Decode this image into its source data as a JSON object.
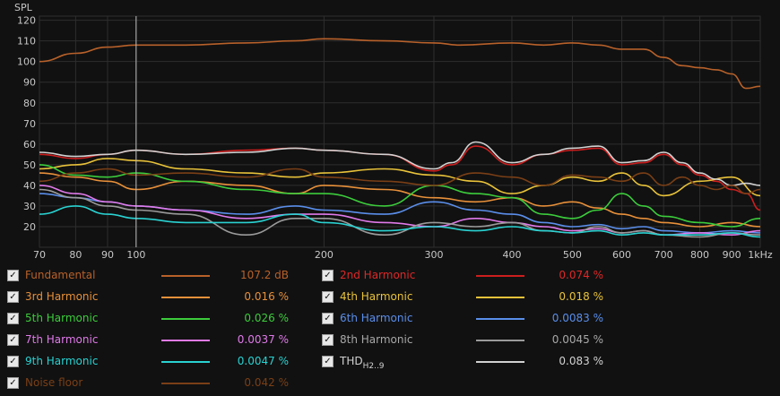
{
  "colors": {
    "background": "#111111",
    "grid": "#2e2e2e",
    "axis_text": "#c8c8c8",
    "cursor": "#bdbdbd"
  },
  "chart_data": {
    "type": "line",
    "ylabel": "SPL",
    "xscale": "log",
    "xlim": [
      70,
      1000
    ],
    "ylim": [
      10,
      122
    ],
    "grid": true,
    "cursor_x": 100,
    "x_ticks": [
      70,
      80,
      90,
      100,
      200,
      300,
      400,
      500,
      600,
      700,
      800,
      900,
      1000
    ],
    "x_tick_labels": [
      "70",
      "80",
      "90",
      "100",
      "200",
      "300",
      "400",
      "500",
      "600",
      "700",
      "800",
      "900",
      "1kHz"
    ],
    "y_ticks": [
      20,
      30,
      40,
      50,
      60,
      70,
      80,
      90,
      100,
      110,
      120
    ],
    "y_tick_labels": [
      "20",
      "30",
      "40",
      "50",
      "60",
      "70",
      "80",
      "90",
      "100",
      "110",
      "120"
    ],
    "series": [
      {
        "name": "Fundamental",
        "color": "#b8612a",
        "x": [
          70,
          80,
          90,
          100,
          120,
          150,
          180,
          200,
          250,
          300,
          330,
          400,
          450,
          500,
          550,
          600,
          650,
          700,
          750,
          800,
          850,
          900,
          950,
          1000
        ],
        "y": [
          100,
          104,
          107,
          108,
          108,
          109,
          110,
          111,
          110,
          109,
          108,
          109,
          108,
          109,
          108,
          106,
          106,
          102,
          98,
          97,
          96,
          94,
          87,
          88
        ]
      },
      {
        "name": "2nd Harmonic",
        "color": "#cc1e1e",
        "x": [
          70,
          80,
          90,
          100,
          120,
          150,
          180,
          200,
          250,
          300,
          320,
          350,
          400,
          450,
          500,
          550,
          600,
          650,
          700,
          750,
          800,
          850,
          900,
          950,
          1000
        ],
        "y": [
          55,
          53,
          55,
          57,
          55,
          57,
          58,
          57,
          55,
          47,
          50,
          59,
          50,
          55,
          57,
          58,
          50,
          51,
          55,
          50,
          45,
          42,
          38,
          36,
          28
        ]
      },
      {
        "name": "3rd Harmonic",
        "color": "#e8903a",
        "x": [
          70,
          80,
          90,
          100,
          120,
          150,
          180,
          200,
          250,
          300,
          350,
          400,
          450,
          500,
          550,
          600,
          650,
          700,
          800,
          900,
          1000
        ],
        "y": [
          46,
          44,
          42,
          38,
          42,
          40,
          36,
          40,
          38,
          34,
          32,
          34,
          30,
          32,
          29,
          26,
          24,
          22,
          20,
          22,
          20
        ]
      },
      {
        "name": "4th Harmonic",
        "color": "#e8c23a",
        "x": [
          70,
          80,
          90,
          100,
          120,
          150,
          180,
          200,
          250,
          300,
          350,
          400,
          450,
          500,
          550,
          600,
          650,
          700,
          800,
          900,
          1000
        ],
        "y": [
          48,
          50,
          53,
          52,
          48,
          46,
          44,
          46,
          48,
          45,
          42,
          36,
          40,
          44,
          42,
          46,
          40,
          35,
          42,
          44,
          35
        ]
      },
      {
        "name": "5th Harmonic",
        "color": "#3ccc3c",
        "x": [
          70,
          80,
          90,
          100,
          120,
          150,
          180,
          200,
          250,
          300,
          350,
          400,
          450,
          500,
          550,
          600,
          650,
          700,
          800,
          900,
          1000
        ],
        "y": [
          50,
          45,
          44,
          46,
          42,
          38,
          36,
          36,
          30,
          40,
          36,
          34,
          26,
          24,
          28,
          36,
          30,
          25,
          22,
          20,
          24
        ]
      },
      {
        "name": "6th Harmonic",
        "color": "#5a8eea",
        "x": [
          70,
          80,
          90,
          100,
          120,
          150,
          180,
          200,
          250,
          300,
          350,
          400,
          450,
          500,
          550,
          600,
          650,
          700,
          800,
          900,
          1000
        ],
        "y": [
          36,
          34,
          32,
          30,
          28,
          26,
          30,
          28,
          26,
          32,
          28,
          26,
          22,
          20,
          21,
          19,
          20,
          18,
          17,
          18,
          17
        ]
      },
      {
        "name": "7th Harmonic",
        "color": "#e07aea",
        "x": [
          70,
          80,
          90,
          100,
          120,
          150,
          180,
          200,
          250,
          300,
          350,
          400,
          450,
          500,
          550,
          600,
          650,
          700,
          800,
          900,
          1000
        ],
        "y": [
          40,
          36,
          32,
          30,
          28,
          24,
          26,
          26,
          22,
          20,
          24,
          22,
          20,
          18,
          19,
          17,
          18,
          16,
          17,
          16,
          18
        ]
      },
      {
        "name": "8th Harmonic",
        "color": "#9a9a9a",
        "x": [
          70,
          80,
          90,
          100,
          120,
          150,
          180,
          200,
          250,
          300,
          350,
          400,
          450,
          500,
          550,
          600,
          650,
          700,
          800,
          900,
          1000
        ],
        "y": [
          38,
          34,
          30,
          28,
          26,
          16,
          24,
          24,
          16,
          22,
          20,
          22,
          18,
          17,
          20,
          17,
          18,
          16,
          15,
          17,
          16
        ]
      },
      {
        "name": "9th Harmonic",
        "color": "#2ad2d2",
        "x": [
          70,
          80,
          90,
          100,
          120,
          150,
          180,
          200,
          250,
          300,
          350,
          400,
          450,
          500,
          550,
          600,
          650,
          700,
          800,
          900,
          1000
        ],
        "y": [
          26,
          30,
          26,
          24,
          22,
          22,
          26,
          22,
          18,
          20,
          18,
          20,
          18,
          17,
          18,
          16,
          17,
          16,
          16,
          17,
          15
        ]
      },
      {
        "name": "THD",
        "color": "#d2d2d2",
        "x": [
          70,
          80,
          90,
          100,
          120,
          150,
          180,
          200,
          250,
          300,
          320,
          350,
          400,
          450,
          500,
          550,
          600,
          650,
          700,
          750,
          800,
          850,
          900,
          950,
          1000
        ],
        "y": [
          56,
          54,
          55,
          57,
          55,
          56,
          58,
          57,
          55,
          48,
          51,
          61,
          51,
          55,
          58,
          59,
          51,
          52,
          56,
          51,
          46,
          43,
          40,
          41,
          40
        ]
      },
      {
        "name": "Noise floor",
        "color": "#7a3f16",
        "x": [
          70,
          80,
          90,
          100,
          120,
          150,
          180,
          200,
          250,
          300,
          350,
          400,
          450,
          500,
          550,
          600,
          650,
          700,
          750,
          800,
          850,
          900,
          950,
          1000
        ],
        "y": [
          42,
          46,
          48,
          45,
          46,
          44,
          48,
          44,
          42,
          40,
          46,
          44,
          40,
          45,
          44,
          42,
          46,
          40,
          44,
          40,
          38,
          40,
          36,
          38
        ]
      }
    ]
  },
  "legend": [
    {
      "label": "Fundamental",
      "value": "107.2 dB",
      "color": "#b8612a",
      "label_color": "#b8612a",
      "value_color": "#b8612a"
    },
    {
      "label": "2nd Harmonic",
      "value": "0.074 %",
      "color": "#cc1e1e",
      "label_color": "#dd2828",
      "value_color": "#dd2828"
    },
    {
      "label": "3rd Harmonic",
      "value": "0.016 %",
      "color": "#e8903a",
      "label_color": "#e8903a",
      "value_color": "#e8903a"
    },
    {
      "label": "4th Harmonic",
      "value": "0.018 %",
      "color": "#e8c23a",
      "label_color": "#e8c23a",
      "value_color": "#e8c23a"
    },
    {
      "label": "5th Harmonic",
      "value": "0.026 %",
      "color": "#3ccc3c",
      "label_color": "#3ccc3c",
      "value_color": "#3ccc3c"
    },
    {
      "label": "6th Harmonic",
      "value": "0.0083 %",
      "color": "#5a8eea",
      "label_color": "#5a8eea",
      "value_color": "#5a8eea"
    },
    {
      "label": "7th Harmonic",
      "value": "0.0037 %",
      "color": "#e07aea",
      "label_color": "#e07aea",
      "value_color": "#e07aea"
    },
    {
      "label": "8th Harmonic",
      "value": "0.0045 %",
      "color": "#9a9a9a",
      "label_color": "#a8a8a8",
      "value_color": "#a8a8a8"
    },
    {
      "label": "9th Harmonic",
      "value": "0.0047 %",
      "color": "#2ad2d2",
      "label_color": "#2ad2d2",
      "value_color": "#2ad2d2"
    },
    {
      "label": "THD",
      "label_sub": "H2..9",
      "value": "0.083 %",
      "color": "#d2d2d2",
      "label_color": "#d2d2d2",
      "value_color": "#d2d2d2"
    },
    {
      "label": "Noise floor",
      "value": "0.042 %",
      "color": "#7a3f16",
      "label_color": "#7a3f16",
      "value_color": "#7a3f16"
    }
  ]
}
